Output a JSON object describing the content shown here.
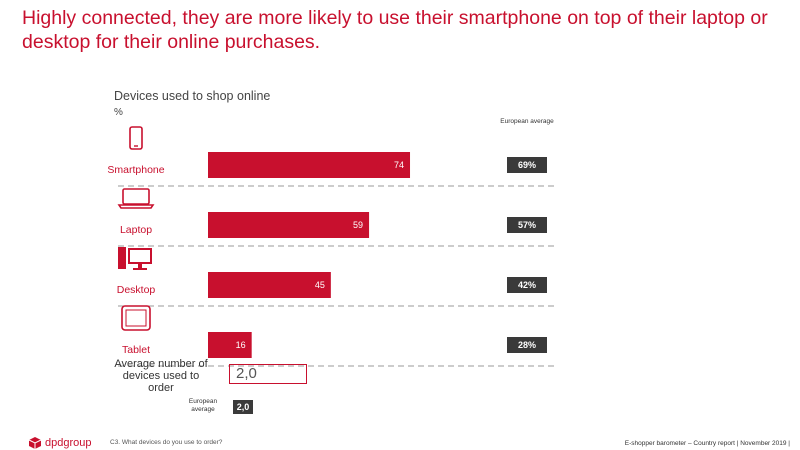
{
  "headline": "Highly connected, they are more likely to use their smartphone on top of their laptop or desktop for their online purchases.",
  "chart_title": "Devices used to shop online",
  "unit_label": "%",
  "european_average_header": "European average",
  "colors": {
    "bar": "#c8102e",
    "european_box": "#3a3a3a",
    "headline": "#c8102e"
  },
  "chart_data": {
    "type": "bar",
    "orientation": "horizontal",
    "categories": [
      "Smartphone",
      "Laptop",
      "Desktop",
      "Tablet"
    ],
    "icons": [
      "smartphone-icon",
      "laptop-icon",
      "desktop-icon",
      "tablet-icon"
    ],
    "values": [
      74,
      59,
      45,
      16
    ],
    "value_labels": [
      "74",
      "59",
      "45",
      "16"
    ],
    "european_average": [
      "69%",
      "57%",
      "42%",
      "28%"
    ],
    "title": "Devices used to shop online",
    "ylabel": "%",
    "xlim": [
      0,
      100
    ],
    "grid": false
  },
  "average_devices": {
    "label": "Average number of devices used to order",
    "value": "2,0",
    "european_label": "European average",
    "european_value": "2,0"
  },
  "footer": {
    "logo_text": "dpdgroup",
    "question": "C3. What devices do you use to order?",
    "right": "E-shopper barometer – Country report | November 2019 |"
  }
}
